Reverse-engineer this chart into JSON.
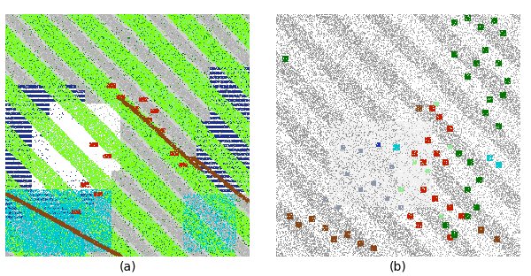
{
  "fig_width": 6.0,
  "fig_height": 3.12,
  "dpi": 100,
  "label_a": "(a)",
  "label_b": "(b)",
  "background_color": "#ffffff",
  "panel_a_colors": {
    "dark_green": [
      0,
      120,
      0
    ],
    "mid_green": [
      34,
      139,
      34
    ],
    "light_green": [
      124,
      252,
      0
    ],
    "pale_green": [
      144,
      238,
      144
    ],
    "blue": [
      30,
      50,
      138
    ],
    "white": [
      255,
      255,
      255
    ],
    "gray": [
      180,
      180,
      180
    ],
    "light_gray": [
      210,
      210,
      210
    ],
    "red": [
      200,
      30,
      0
    ],
    "brown": [
      139,
      69,
      19
    ],
    "cyan": [
      0,
      200,
      210
    ],
    "bg_white": [
      255,
      255,
      255
    ]
  },
  "panel_b_colors": {
    "bg_white": [
      255,
      255,
      255
    ],
    "dot_gray": [
      170,
      170,
      170
    ],
    "road_gray": [
      140,
      140,
      140
    ],
    "white_bldg": [
      240,
      240,
      240
    ],
    "dark_green": [
      0,
      120,
      0
    ],
    "mid_green": [
      34,
      139,
      34
    ],
    "light_green": [
      144,
      238,
      144
    ],
    "red": [
      200,
      30,
      0
    ],
    "brown": [
      139,
      69,
      19
    ],
    "cyan": [
      0,
      200,
      210
    ],
    "blue": [
      30,
      50,
      180
    ],
    "slate": [
      140,
      150,
      170
    ],
    "dark_slate": [
      100,
      110,
      140
    ]
  }
}
